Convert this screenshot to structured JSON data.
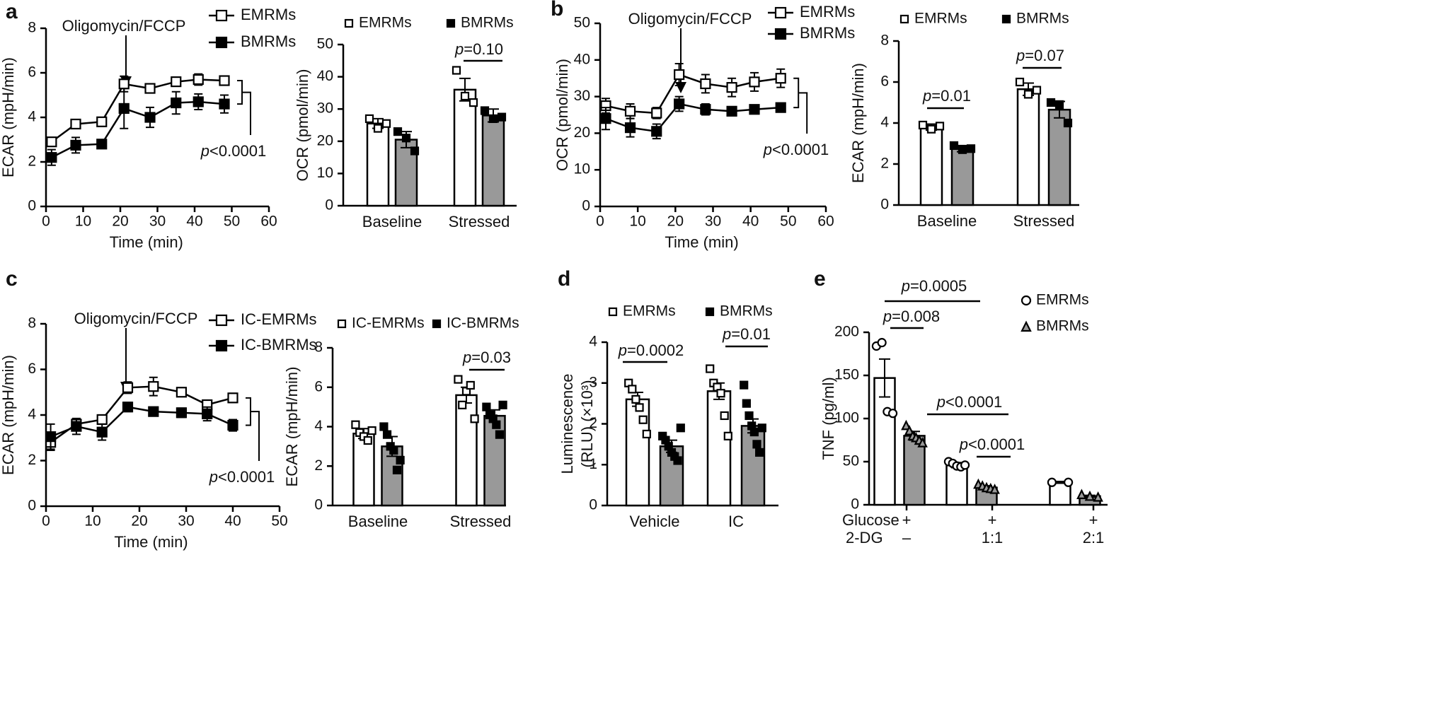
{
  "chart_data": [
    {
      "panel": "a",
      "type": "line",
      "xlabel": "Time (min)",
      "ylabel": "ECAR (mpH/min)",
      "annotations": [
        "Oligomycin/FCCP",
        "p<0.0001"
      ],
      "xlim": [
        0,
        60
      ],
      "xticks": [
        0,
        10,
        20,
        30,
        40,
        50,
        60
      ],
      "ylim": [
        0,
        8
      ],
      "yticks": [
        0,
        2,
        4,
        6,
        8
      ],
      "series": [
        {
          "name": "EMRMs",
          "color": "#000000",
          "marker": "open-square",
          "x": [
            1.5,
            8,
            15,
            21,
            28,
            35,
            41,
            48
          ],
          "values": [
            2.9,
            3.7,
            3.8,
            5.5,
            5.3,
            5.6,
            5.7,
            5.65
          ],
          "errors": [
            0.15,
            0.1,
            0.1,
            0.35,
            0.15,
            0.2,
            0.25,
            0.15
          ]
        },
        {
          "name": "BMRMs",
          "color": "#000000",
          "marker": "square",
          "x": [
            1.5,
            8,
            15,
            21,
            28,
            35,
            41,
            48
          ],
          "values": [
            2.2,
            2.75,
            2.8,
            4.4,
            4.0,
            4.65,
            4.7,
            4.6
          ],
          "errors": [
            0.35,
            0.35,
            0.15,
            0.9,
            0.45,
            0.5,
            0.35,
            0.4
          ]
        }
      ]
    },
    {
      "type": "bar",
      "ylabel": "OCR (pmol/min)",
      "annotations": [
        "p=0.10"
      ],
      "categories": [
        "Baseline",
        "Stressed"
      ],
      "ylim": [
        0,
        50
      ],
      "yticks": [
        0,
        10,
        20,
        30,
        40,
        50
      ],
      "series": [
        {
          "name": "EMRMs",
          "color": "#ffffff",
          "marker": "open-square",
          "values": [
            25.5,
            36
          ],
          "errors": [
            1.5,
            3.5
          ],
          "points": [
            [
              27,
              24,
              25.5
            ],
            [
              42,
              34,
              32
            ]
          ]
        },
        {
          "name": "BMRMs",
          "color": "#999999",
          "marker": "square",
          "values": [
            20.5,
            28
          ],
          "errors": [
            2.5,
            2
          ],
          "points": [
            [
              23,
              21,
              17
            ],
            [
              29.5,
              27,
              27.5
            ]
          ]
        }
      ]
    },
    {
      "panel": "b",
      "type": "line",
      "xlabel": "Time (min)",
      "ylabel": "OCR (pmol/min)",
      "annotations": [
        "Oligomycin/FCCP",
        "p<0.0001"
      ],
      "xlim": [
        0,
        60
      ],
      "xticks": [
        0,
        10,
        20,
        30,
        40,
        50,
        60
      ],
      "ylim": [
        0,
        50
      ],
      "yticks": [
        0,
        10,
        20,
        30,
        40,
        50
      ],
      "series": [
        {
          "name": "EMRMs",
          "color": "#000000",
          "marker": "open-square",
          "x": [
            1.5,
            8,
            15,
            21,
            28,
            35,
            41,
            48
          ],
          "values": [
            27.5,
            26,
            25.5,
            36,
            33.5,
            32.5,
            34,
            35
          ],
          "errors": [
            2,
            2,
            1.5,
            3,
            2.5,
            2.5,
            2.5,
            2.5
          ]
        },
        {
          "name": "BMRMs",
          "color": "#000000",
          "marker": "square",
          "x": [
            1.5,
            8,
            15,
            21,
            28,
            35,
            41,
            48
          ],
          "values": [
            24,
            21.5,
            20.5,
            28,
            26.5,
            26,
            26.5,
            27
          ],
          "errors": [
            3,
            2.5,
            2,
            2,
            1.5,
            1.2,
            1.2,
            1
          ]
        }
      ]
    },
    {
      "type": "bar",
      "ylabel": "ECAR (mpH/min)",
      "annotations": [
        "p=0.01",
        "p=0.07"
      ],
      "categories": [
        "Baseline",
        "Stressed"
      ],
      "ylim": [
        0,
        8
      ],
      "yticks": [
        0,
        2,
        4,
        6,
        8
      ],
      "series": [
        {
          "name": "EMRMs",
          "color": "#ffffff",
          "marker": "open-square",
          "values": [
            3.8,
            5.65
          ],
          "errors": [
            0.15,
            0.3
          ],
          "points": [
            [
              3.9,
              3.7,
              3.85
            ],
            [
              6.0,
              5.4,
              5.6
            ]
          ]
        },
        {
          "name": "BMRMs",
          "color": "#999999",
          "marker": "square",
          "values": [
            2.75,
            4.65
          ],
          "errors": [
            0.15,
            0.4
          ],
          "points": [
            [
              2.9,
              2.7,
              2.75
            ],
            [
              5.0,
              4.9,
              4.0
            ]
          ]
        }
      ]
    },
    {
      "panel": "c",
      "type": "line",
      "xlabel": "Time (min)",
      "ylabel": "ECAR (mpH/min)",
      "annotations": [
        "Oligomycin/FCCP",
        "p<0.0001"
      ],
      "xlim": [
        0,
        50
      ],
      "xticks": [
        0,
        10,
        20,
        30,
        40,
        50
      ],
      "ylim": [
        0,
        8
      ],
      "yticks": [
        0,
        2,
        4,
        6,
        8
      ],
      "series": [
        {
          "name": "IC-EMRMs",
          "color": "#000000",
          "marker": "open-square",
          "x": [
            1,
            6.5,
            12,
            17.5,
            23,
            29,
            34.5,
            40
          ],
          "values": [
            2.8,
            3.6,
            3.8,
            5.2,
            5.25,
            5.0,
            4.45,
            4.75
          ],
          "errors": [
            0.35,
            0.2,
            0.15,
            0.25,
            0.4,
            0.15,
            0.15,
            0.2
          ]
        },
        {
          "name": "IC-BMRMs",
          "color": "#000000",
          "marker": "square",
          "x": [
            1,
            6.5,
            12,
            17.5,
            23,
            29,
            34.5,
            40
          ],
          "values": [
            3.05,
            3.5,
            3.25,
            4.35,
            4.15,
            4.1,
            4.05,
            3.55
          ],
          "errors": [
            0.55,
            0.35,
            0.35,
            0.2,
            0.15,
            0.2,
            0.3,
            0.25
          ]
        }
      ]
    },
    {
      "type": "bar",
      "ylabel": "ECAR (mpH/min)",
      "annotations": [
        "p=0.03"
      ],
      "categories": [
        "Baseline",
        "Stressed"
      ],
      "ylim": [
        0,
        8
      ],
      "yticks": [
        0,
        2,
        4,
        6,
        8
      ],
      "series": [
        {
          "name": "IC-EMRMs",
          "color": "#ffffff",
          "marker": "open-square",
          "values": [
            3.65,
            5.6
          ],
          "errors": [
            0.25,
            0.4
          ],
          "points": [
            [
              4.1,
              3.7,
              3.5,
              3.3,
              3.8
            ],
            [
              6.4,
              5.1,
              5.8,
              6.1,
              4.4
            ]
          ]
        },
        {
          "name": "IC-BMRMs",
          "color": "#999999",
          "marker": "square",
          "values": [
            3.0,
            4.55
          ],
          "errors": [
            0.5,
            0.3
          ],
          "points": [
            [
              4.0,
              3.6,
              3.0,
              2.8,
              1.8,
              2.3
            ],
            [
              5.0,
              4.6,
              4.4,
              4.1,
              3.6,
              5.1
            ]
          ]
        }
      ]
    },
    {
      "panel": "d",
      "type": "bar",
      "ylabel": [
        "Luminescence",
        "(RLU) (×10³)"
      ],
      "annotations": [
        "p=0.0002",
        "p=0.01"
      ],
      "categories": [
        "Vehicle",
        "IC"
      ],
      "ylim": [
        0,
        4
      ],
      "yticks": [
        0,
        1,
        2,
        3,
        4
      ],
      "series": [
        {
          "name": "EMRMs",
          "color": "#ffffff",
          "marker": "open-square",
          "values": [
            2.6,
            2.8
          ],
          "errors": [
            0.17,
            0.2
          ],
          "points": [
            [
              3.0,
              2.85,
              2.6,
              2.4,
              2.1,
              1.75
            ],
            [
              3.35,
              3.0,
              2.9,
              2.75,
              2.2,
              1.7
            ]
          ]
        },
        {
          "name": "BMRMs",
          "color": "#999999",
          "marker": "square",
          "values": [
            1.45,
            1.95
          ],
          "errors": [
            0.15,
            0.17
          ],
          "points": [
            [
              1.7,
              1.6,
              1.45,
              1.3,
              1.2,
              1.1,
              1.9
            ],
            [
              2.95,
              2.5,
              2.2,
              1.95,
              1.8,
              1.5,
              1.3,
              1.9
            ]
          ]
        }
      ]
    },
    {
      "panel": "e",
      "type": "bar",
      "ylabel": "TNF (pg/ml)",
      "annotations": [
        "p=0.008",
        "p=0.0005",
        "p<0.0001",
        "p<0.0001"
      ],
      "row_labels": [
        "Glucose",
        "2-DG"
      ],
      "categories": [
        [
          "+",
          "–"
        ],
        [
          "+",
          "1:1"
        ],
        [
          "+",
          "2:1"
        ]
      ],
      "ylim": [
        0,
        200
      ],
      "yticks": [
        0,
        50,
        100,
        150,
        200
      ],
      "series": [
        {
          "name": "EMRMs",
          "color": "#ffffff",
          "marker": "open-circle",
          "values": [
            147,
            46,
            26
          ],
          "errors": [
            22,
            3,
            1
          ],
          "points": [
            [
              184,
              188,
              108,
              106
            ],
            [
              50,
              48,
              45,
              44,
              46
            ],
            [
              26,
              26
            ]
          ]
        },
        {
          "name": "BMRMs",
          "color": "#999999",
          "marker": "triangle",
          "values": [
            80,
            20,
            10
          ],
          "errors": [
            5,
            2,
            1
          ],
          "points": [
            [
              92,
              86,
              80,
              78,
              75,
              72
            ],
            [
              24,
              22,
              20,
              19,
              18
            ],
            [
              12,
              10,
              9
            ]
          ]
        }
      ]
    }
  ]
}
